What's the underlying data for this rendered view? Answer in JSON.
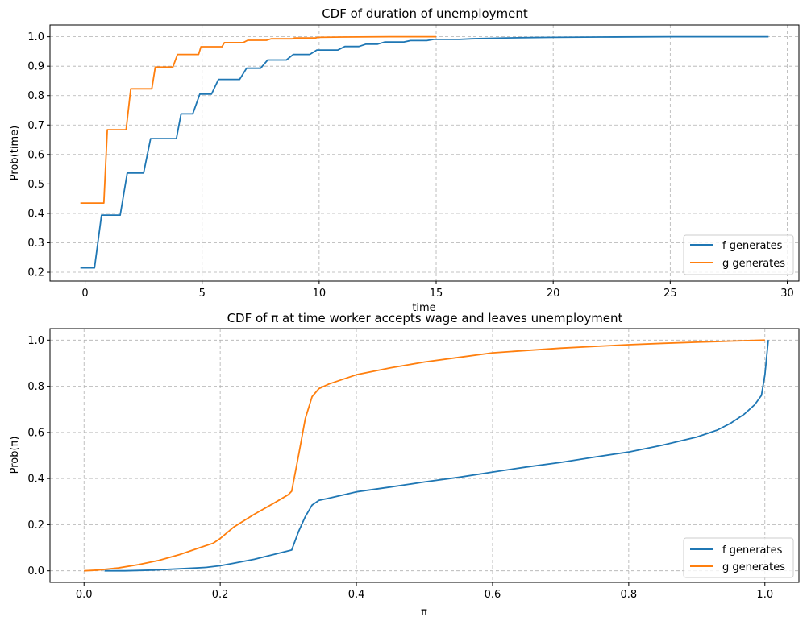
{
  "chart_data": [
    {
      "type": "line",
      "step": true,
      "title": "CDF of duration of unemployment",
      "xlabel": "time",
      "ylabel": "Prob(time)",
      "xlim": [
        -1.5,
        30.5
      ],
      "ylim": [
        0.17,
        1.04
      ],
      "xticks": [
        "0",
        "5",
        "10",
        "15",
        "20",
        "25",
        "30"
      ],
      "yticks": [
        "0.2",
        "0.3",
        "0.4",
        "0.5",
        "0.6",
        "0.7",
        "0.8",
        "0.9",
        "1.0"
      ],
      "grid": true,
      "legend_position": "lower right",
      "series": [
        {
          "name": "f generates",
          "color": "#1f77b4",
          "points": [
            [
              -0.2,
              0.215
            ],
            [
              0.4,
              0.215
            ],
            [
              0.7,
              0.394
            ],
            [
              1.5,
              0.394
            ],
            [
              1.8,
              0.537
            ],
            [
              2.5,
              0.537
            ],
            [
              2.8,
              0.654
            ],
            [
              3.9,
              0.654
            ],
            [
              4.1,
              0.738
            ],
            [
              4.6,
              0.738
            ],
            [
              4.9,
              0.805
            ],
            [
              5.4,
              0.805
            ],
            [
              5.7,
              0.855
            ],
            [
              6.6,
              0.855
            ],
            [
              6.9,
              0.893
            ],
            [
              7.5,
              0.893
            ],
            [
              7.8,
              0.921
            ],
            [
              8.6,
              0.921
            ],
            [
              8.9,
              0.94
            ],
            [
              9.6,
              0.94
            ],
            [
              9.9,
              0.955
            ],
            [
              10.8,
              0.955
            ],
            [
              11.1,
              0.967
            ],
            [
              11.7,
              0.967
            ],
            [
              12.0,
              0.975
            ],
            [
              12.5,
              0.975
            ],
            [
              12.8,
              0.982
            ],
            [
              13.6,
              0.982
            ],
            [
              13.9,
              0.987
            ],
            [
              14.6,
              0.987
            ],
            [
              14.9,
              0.991
            ],
            [
              16.0,
              0.991
            ],
            [
              16.5,
              0.993
            ],
            [
              17.0,
              0.994
            ],
            [
              18.0,
              0.996
            ],
            [
              19.0,
              0.997
            ],
            [
              20.0,
              0.998
            ],
            [
              22.0,
              0.999
            ],
            [
              25.0,
              1.0
            ],
            [
              29.2,
              1.0
            ]
          ]
        },
        {
          "name": "g generates",
          "color": "#ff7f0e",
          "points": [
            [
              -0.2,
              0.435
            ],
            [
              0.8,
              0.435
            ],
            [
              0.95,
              0.684
            ],
            [
              1.75,
              0.684
            ],
            [
              1.95,
              0.823
            ],
            [
              2.85,
              0.823
            ],
            [
              3.0,
              0.897
            ],
            [
              3.75,
              0.897
            ],
            [
              3.95,
              0.94
            ],
            [
              4.85,
              0.94
            ],
            [
              4.95,
              0.966
            ],
            [
              5.85,
              0.966
            ],
            [
              5.95,
              0.98
            ],
            [
              6.75,
              0.98
            ],
            [
              6.95,
              0.988
            ],
            [
              7.75,
              0.988
            ],
            [
              7.95,
              0.993
            ],
            [
              8.85,
              0.993
            ],
            [
              8.95,
              0.996
            ],
            [
              9.85,
              0.996
            ],
            [
              9.95,
              0.998
            ],
            [
              11.0,
              0.999
            ],
            [
              13.0,
              1.0
            ],
            [
              15.0,
              1.0
            ]
          ]
        }
      ]
    },
    {
      "type": "line",
      "title": "CDF of π at time worker accepts wage and leaves unemployment",
      "xlabel": "π",
      "ylabel": "Prob(π)",
      "xlim": [
        -0.05,
        1.05
      ],
      "ylim": [
        -0.05,
        1.05
      ],
      "xticks": [
        "0.0",
        "0.2",
        "0.4",
        "0.6",
        "0.8",
        "1.0"
      ],
      "yticks": [
        "0.0",
        "0.2",
        "0.4",
        "0.6",
        "0.8",
        "1.0"
      ],
      "grid": true,
      "legend_position": "lower right",
      "series": [
        {
          "name": "f generates",
          "color": "#1f77b4",
          "points": [
            [
              0.03,
              0.0
            ],
            [
              0.06,
              0.0
            ],
            [
              0.1,
              0.003
            ],
            [
              0.15,
              0.01
            ],
            [
              0.18,
              0.015
            ],
            [
              0.2,
              0.022
            ],
            [
              0.22,
              0.033
            ],
            [
              0.25,
              0.05
            ],
            [
              0.28,
              0.072
            ],
            [
              0.305,
              0.09
            ],
            [
              0.315,
              0.17
            ],
            [
              0.325,
              0.235
            ],
            [
              0.335,
              0.285
            ],
            [
              0.345,
              0.305
            ],
            [
              0.36,
              0.315
            ],
            [
              0.4,
              0.342
            ],
            [
              0.45,
              0.363
            ],
            [
              0.5,
              0.385
            ],
            [
              0.55,
              0.405
            ],
            [
              0.6,
              0.428
            ],
            [
              0.65,
              0.45
            ],
            [
              0.7,
              0.47
            ],
            [
              0.75,
              0.493
            ],
            [
              0.8,
              0.515
            ],
            [
              0.85,
              0.545
            ],
            [
              0.9,
              0.58
            ],
            [
              0.93,
              0.61
            ],
            [
              0.95,
              0.64
            ],
            [
              0.97,
              0.68
            ],
            [
              0.985,
              0.72
            ],
            [
              0.995,
              0.76
            ],
            [
              1.0,
              0.85
            ],
            [
              1.005,
              1.0
            ]
          ]
        },
        {
          "name": "g generates",
          "color": "#ff7f0e",
          "points": [
            [
              0.0,
              0.0
            ],
            [
              0.02,
              0.003
            ],
            [
              0.05,
              0.012
            ],
            [
              0.08,
              0.027
            ],
            [
              0.11,
              0.045
            ],
            [
              0.14,
              0.07
            ],
            [
              0.17,
              0.1
            ],
            [
              0.19,
              0.12
            ],
            [
              0.2,
              0.14
            ],
            [
              0.22,
              0.19
            ],
            [
              0.25,
              0.245
            ],
            [
              0.28,
              0.295
            ],
            [
              0.3,
              0.33
            ],
            [
              0.305,
              0.345
            ],
            [
              0.315,
              0.5
            ],
            [
              0.325,
              0.66
            ],
            [
              0.335,
              0.755
            ],
            [
              0.345,
              0.79
            ],
            [
              0.36,
              0.81
            ],
            [
              0.4,
              0.85
            ],
            [
              0.45,
              0.88
            ],
            [
              0.5,
              0.905
            ],
            [
              0.55,
              0.925
            ],
            [
              0.6,
              0.945
            ],
            [
              0.65,
              0.955
            ],
            [
              0.7,
              0.965
            ],
            [
              0.75,
              0.973
            ],
            [
              0.8,
              0.98
            ],
            [
              0.85,
              0.986
            ],
            [
              0.9,
              0.991
            ],
            [
              0.95,
              0.996
            ],
            [
              1.0,
              1.0
            ]
          ]
        }
      ]
    }
  ]
}
